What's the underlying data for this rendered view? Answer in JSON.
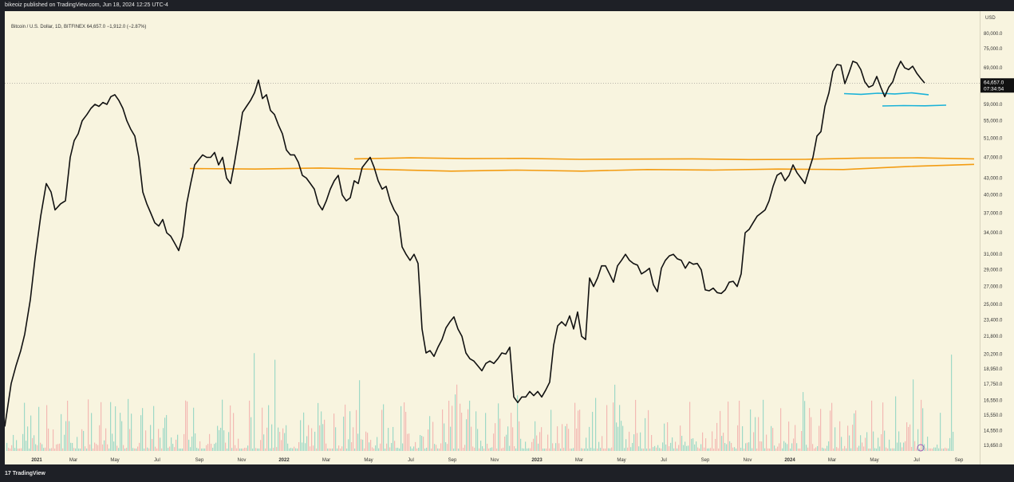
{
  "header": {
    "published": "bikeoiz published on TradingView.com, Jun 18, 2024 12:25 UTC-4"
  },
  "footer": {
    "logo_text": "TradingView",
    "logo_mark": "17"
  },
  "legend": {
    "text": "Bitcoin / U.S. Dollar, 1D, BITFINEX  64,657.0  −1,912.0 (−2.87%)"
  },
  "chart_data": {
    "type": "line",
    "title": "Bitcoin / U.S. Dollar, 1D, BITFINEX",
    "currency": "USD",
    "last_price": "64,657.0",
    "countdown": "07:34:54",
    "y_ticks": [
      "80,000.0",
      "75,000.0",
      "69,000.0",
      "59,000.0",
      "55,000.0",
      "51,000.0",
      "47,000.0",
      "43,000.0",
      "40,000.0",
      "37,000.0",
      "34,000.0",
      "31,000.0",
      "29,000.0",
      "27,000.0",
      "25,000.0",
      "23,400.0",
      "21,800.0",
      "20,200.0",
      "18,950.0",
      "17,750.0",
      "16,550.0",
      "15,550.0",
      "14,550.0",
      "13,650.0"
    ],
    "x_ticks": [
      "2021",
      "Mar",
      "May",
      "Jul",
      "Sep",
      "Nov",
      "2022",
      "Mar",
      "May",
      "Jul",
      "Sep",
      "Nov",
      "2023",
      "Mar",
      "May",
      "Jul",
      "Sep",
      "Nov",
      "2024",
      "Mar",
      "May",
      "Jul",
      "Sep"
    ],
    "price_series": {
      "name": "BTCUSD close",
      "x": [
        0,
        8,
        14,
        20,
        25,
        32,
        38,
        45,
        52,
        58,
        63,
        70,
        76,
        82,
        87,
        92,
        97,
        103,
        108,
        113,
        118,
        123,
        128,
        133,
        138,
        143,
        148,
        153,
        158,
        163,
        168,
        173,
        178,
        183,
        188,
        193,
        198,
        203,
        208,
        213,
        218,
        223,
        228,
        233,
        238,
        243,
        248,
        253,
        258,
        263,
        268,
        273,
        278,
        283,
        288,
        293,
        298,
        303,
        308,
        313,
        318,
        323,
        328,
        333,
        338,
        343,
        348,
        353,
        358,
        363,
        368,
        373,
        378,
        383,
        388,
        393,
        398,
        403,
        408,
        413,
        418,
        423,
        428,
        433,
        438,
        443,
        448,
        453,
        458,
        463,
        468,
        473,
        478,
        483,
        488,
        493,
        498,
        503,
        508,
        513,
        518,
        523,
        528,
        533,
        538,
        543,
        548,
        553,
        558,
        563,
        568,
        573,
        578,
        583,
        588,
        593,
        598,
        603,
        608,
        613,
        618,
        623,
        628,
        633,
        638,
        643,
        648,
        653,
        658,
        663,
        668,
        673,
        678,
        683,
        688,
        693,
        698,
        703,
        708,
        713,
        718,
        723,
        728,
        733,
        738,
        743,
        748,
        753,
        758,
        763,
        768,
        773,
        778,
        783,
        788,
        793,
        798,
        803,
        808,
        813,
        818,
        823,
        828,
        833,
        838,
        843,
        848,
        853,
        858,
        863,
        868,
        873,
        878,
        883,
        888,
        893,
        898,
        903,
        908,
        913,
        918,
        923,
        928,
        933,
        938,
        943,
        948,
        953,
        958,
        963,
        968,
        973,
        978,
        983,
        988,
        993,
        998,
        1003,
        1008,
        1013,
        1018,
        1023,
        1028,
        1033,
        1038,
        1043,
        1048,
        1053,
        1058,
        1063,
        1068,
        1073,
        1078,
        1083,
        1088,
        1093,
        1098,
        1103,
        1108,
        1113,
        1118,
        1123,
        1128,
        1133,
        1138,
        1143,
        1148,
        1153
      ],
      "y": [
        14800,
        17800,
        19200,
        20500,
        22000,
        25500,
        30500,
        36500,
        42000,
        40500,
        37500,
        38500,
        39000,
        47000,
        50500,
        52000,
        55000,
        56500,
        58000,
        59000,
        58500,
        59500,
        59000,
        61000,
        61500,
        60000,
        58000,
        55000,
        53000,
        51500,
        47000,
        40500,
        38500,
        37000,
        35500,
        35000,
        36000,
        34000,
        33500,
        32500,
        31500,
        33500,
        38500,
        42000,
        45500,
        46500,
        47500,
        47000,
        47000,
        48000,
        45500,
        47000,
        43000,
        42000,
        46000,
        51000,
        57000,
        58500,
        60000,
        62000,
        65500,
        60500,
        61500,
        57500,
        56500,
        54000,
        52000,
        48500,
        47500,
        47500,
        46000,
        43500,
        43000,
        42000,
        41000,
        38500,
        37500,
        39000,
        41000,
        42500,
        43500,
        40000,
        39000,
        39500,
        42500,
        42000,
        45000,
        46000,
        47000,
        45000,
        42500,
        41000,
        41500,
        39000,
        37500,
        36500,
        32000,
        31000,
        30200,
        31000,
        29800,
        22500,
        20300,
        20500,
        20000,
        20800,
        21500,
        22600,
        23200,
        23700,
        22500,
        21800,
        20300,
        19800,
        19600,
        19200,
        18800,
        19400,
        19600,
        19400,
        19800,
        20300,
        20200,
        20800,
        16800,
        16400,
        16800,
        16800,
        17200,
        16900,
        17200,
        16800,
        17300,
        17900,
        21000,
        22800,
        23200,
        22800,
        23800,
        22500,
        24200,
        21800,
        21500,
        28000,
        27000,
        28000,
        29500,
        29500,
        28500,
        27500,
        29500,
        30200,
        31000,
        30200,
        29800,
        29600,
        28500,
        28800,
        29200,
        27200,
        26400,
        29200,
        30200,
        30800,
        31000,
        30400,
        30200,
        29200,
        30000,
        29700,
        29800,
        29000,
        26600,
        26500,
        26800,
        26300,
        26200,
        26600,
        27500,
        27600,
        27000,
        28500,
        34000,
        34500,
        35500,
        36500,
        37000,
        37500,
        39000,
        41500,
        43500,
        44000,
        42500,
        43500,
        45500,
        44000,
        43000,
        42000,
        44500,
        47000,
        51500,
        52500,
        58500,
        62000,
        68000,
        70000,
        69800,
        64500,
        67500,
        71000,
        70500,
        68500,
        65000,
        63500,
        64000,
        66500,
        63500,
        61000,
        63500,
        65000,
        68500,
        71000,
        69000,
        68500,
        69500,
        67500,
        66000,
        64657
      ]
    },
    "hline_price": 64657,
    "support_bands": [
      {
        "name": "orange-upper",
        "color": "#f39c12",
        "x_start": 438,
        "x_end": 1215,
        "y": [
          46700,
          46900,
          46750,
          46800,
          46600,
          46650,
          46700,
          46550,
          46600,
          46850,
          46900,
          46700
        ]
      },
      {
        "name": "orange-lower",
        "color": "#f39c12",
        "x_start": 232,
        "x_end": 1215,
        "y": [
          44800,
          44700,
          44900,
          44600,
          44300,
          44500,
          44300,
          44600,
          44500,
          44700,
          44600,
          45200,
          45600
        ]
      },
      {
        "name": "cyan-upper",
        "color": "#1ab2d8",
        "x_start": 1052,
        "x_end": 1158,
        "y": [
          61800,
          61600,
          61900,
          61700,
          62000,
          61500
        ]
      },
      {
        "name": "cyan-lower",
        "color": "#1ab2d8",
        "x_start": 1100,
        "x_end": 1180,
        "y": [
          58600,
          58700,
          58650,
          58800
        ]
      }
    ],
    "volume_bars": {
      "description": "Bars along bottom with mixed green/red colors",
      "positive_color": "#9ed9c6",
      "negative_color": "#f3b9b3"
    }
  }
}
